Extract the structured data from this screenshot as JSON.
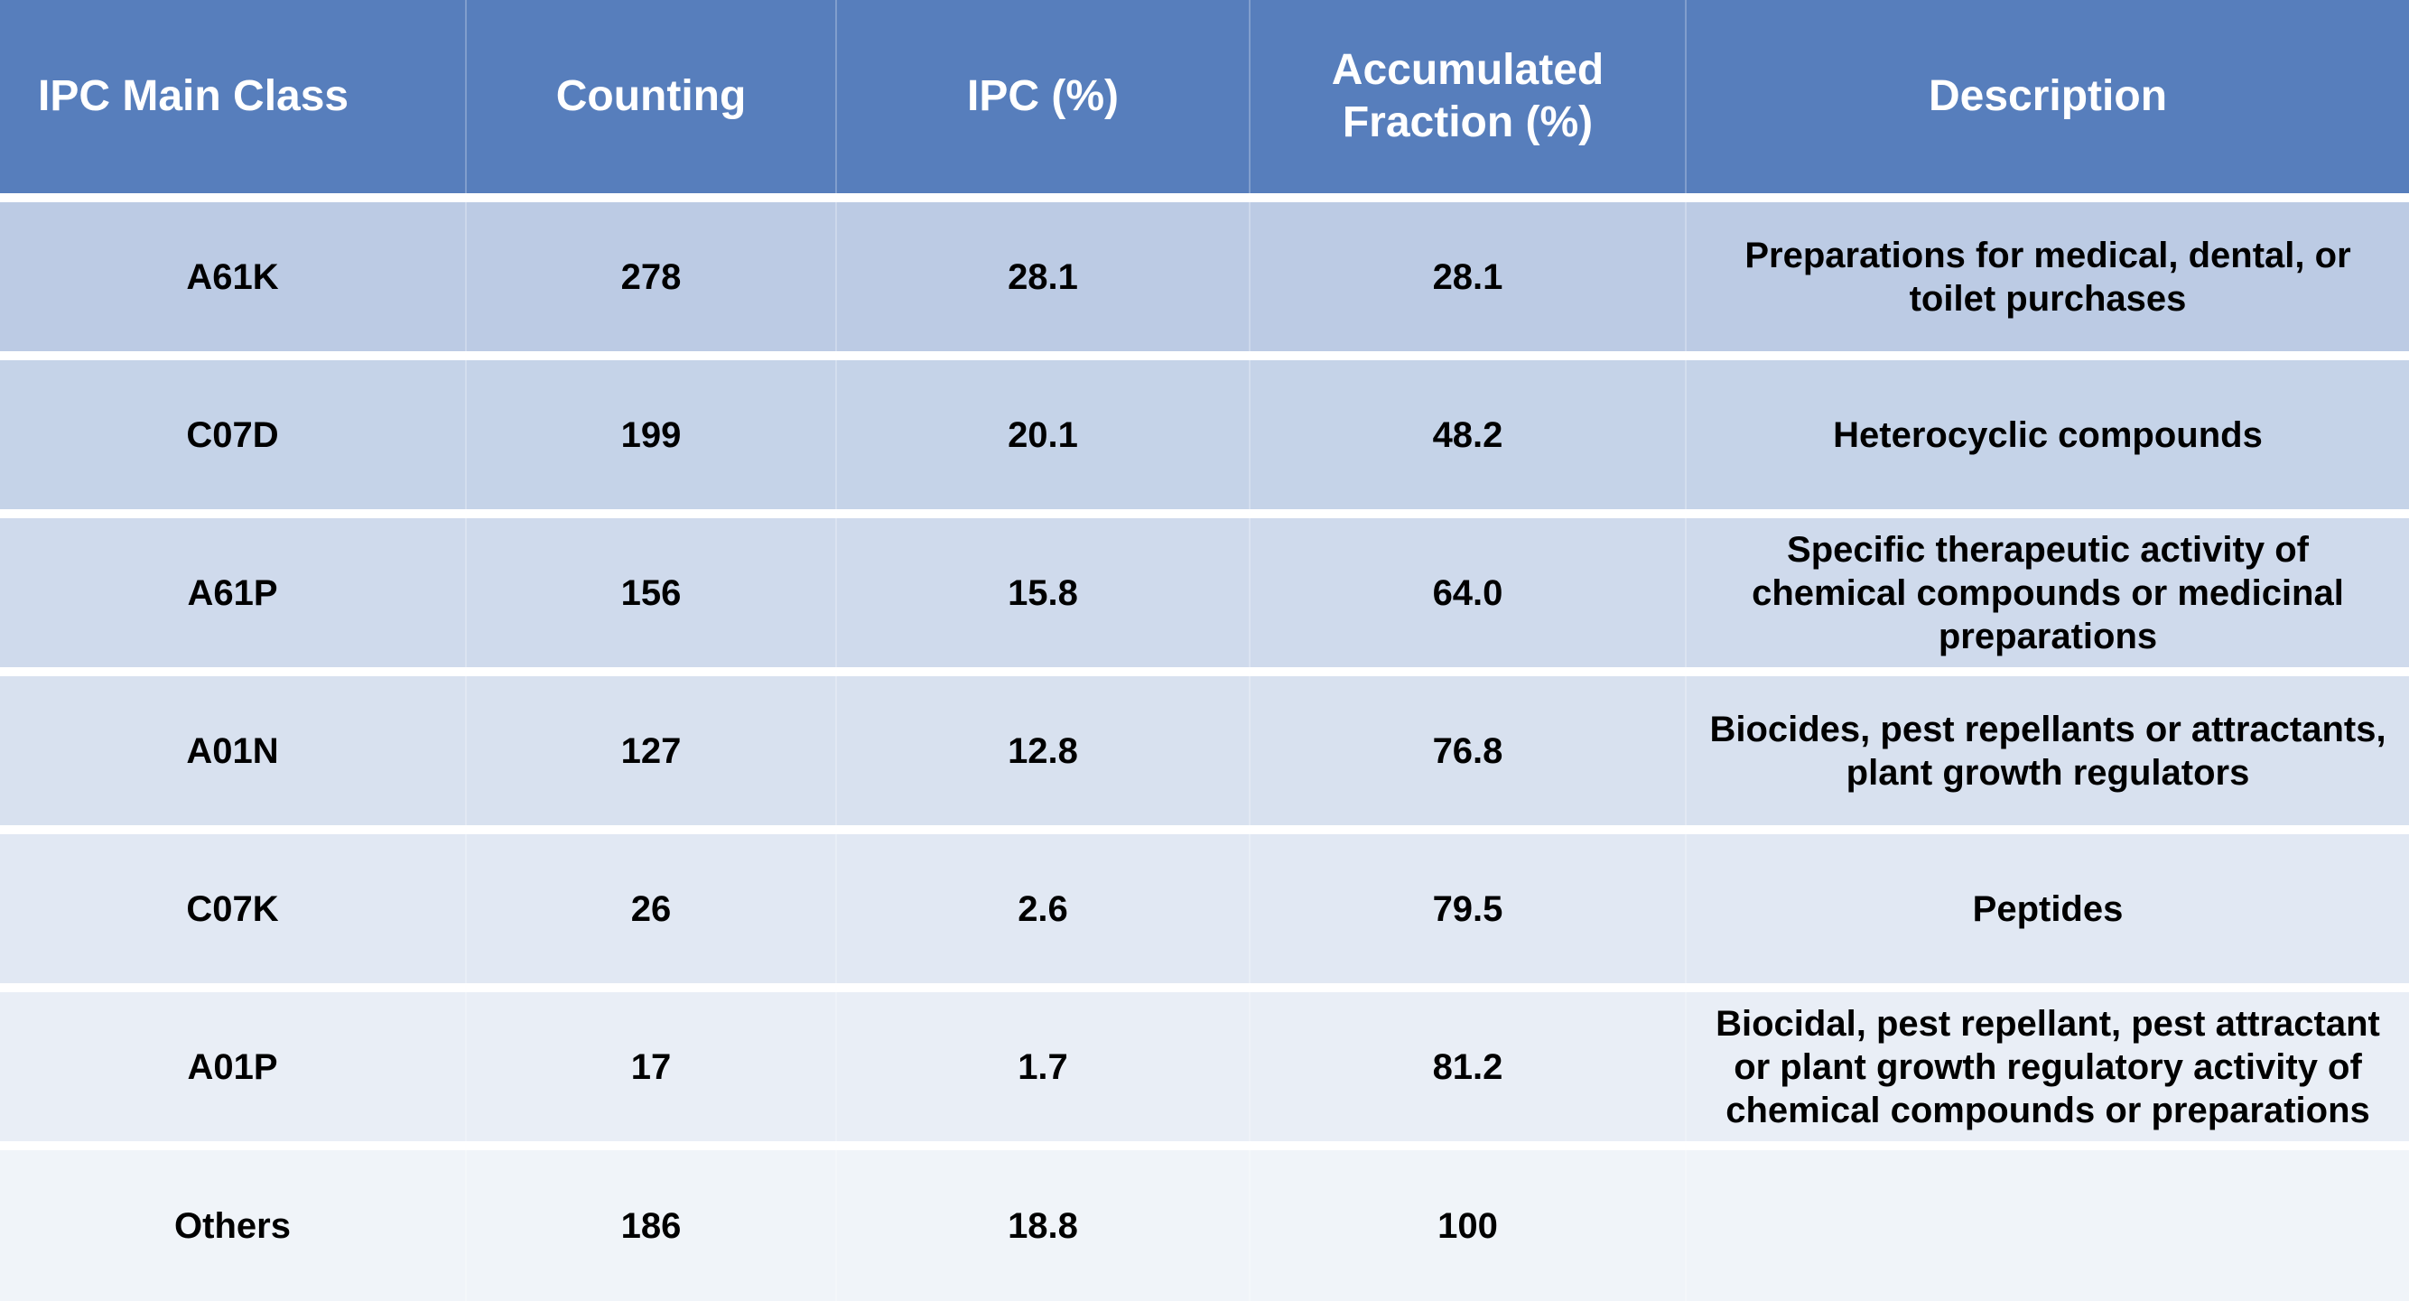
{
  "table": {
    "header": [
      "IPC Main Class",
      "Counting",
      "IPC (%)",
      "Accumulated Fraction (%)",
      "Description"
    ],
    "rows": [
      [
        "A61K",
        "278",
        "28.1",
        "28.1",
        "Preparations for medical, dental, or toilet purchases"
      ],
      [
        "C07D",
        "199",
        "20.1",
        "48.2",
        "Heterocyclic compounds"
      ],
      [
        "A61P",
        "156",
        "15.8",
        "64.0",
        "Specific therapeutic activity of chemical compounds or medicinal preparations"
      ],
      [
        "A01N",
        "127",
        "12.8",
        "76.8",
        "Biocides, pest repellants or attractants, plant growth regulators"
      ],
      [
        "C07K",
        "26",
        "2.6",
        "79.5",
        "Peptides"
      ],
      [
        "A01P",
        "17",
        "1.7",
        "81.2",
        "Biocidal, pest repellant, pest attractant or plant growth regulatory activity of chemical compounds or preparations"
      ],
      [
        "Others",
        "186",
        "18.8",
        "100"
      ]
    ]
  }
}
